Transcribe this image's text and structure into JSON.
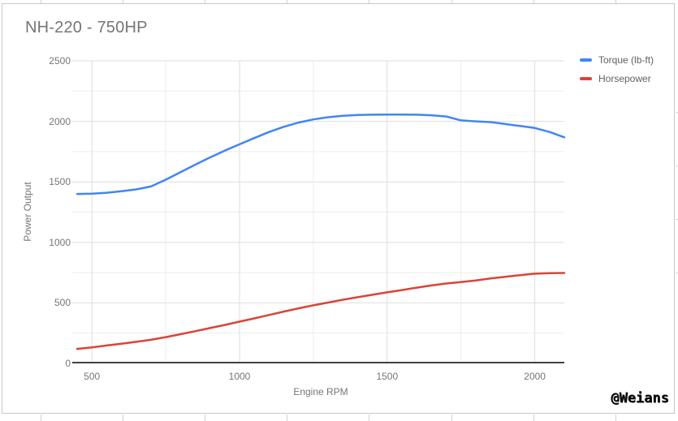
{
  "chart_data": {
    "type": "line",
    "title": "NH-220 - 750HP",
    "xlabel": "Engine RPM",
    "ylabel": "Power Output",
    "x": [
      450,
      500,
      550,
      600,
      650,
      700,
      750,
      800,
      850,
      900,
      950,
      1000,
      1050,
      1100,
      1150,
      1200,
      1250,
      1300,
      1350,
      1400,
      1450,
      1500,
      1550,
      1600,
      1650,
      1700,
      1750,
      1800,
      1850,
      1900,
      1950,
      2000,
      2050,
      2100
    ],
    "series": [
      {
        "name": "Torque (lb-ft)",
        "color": "#4285f4",
        "values": [
          1400,
          1402,
          1410,
          1422,
          1438,
          1462,
          1518,
          1580,
          1642,
          1702,
          1758,
          1810,
          1862,
          1912,
          1955,
          1990,
          2016,
          2034,
          2046,
          2052,
          2055,
          2056,
          2056,
          2055,
          2050,
          2040,
          2008,
          2000,
          1994,
          1978,
          1962,
          1945,
          1912,
          1868
        ]
      },
      {
        "name": "Horsepower",
        "color": "#db4437",
        "values": [
          120,
          133,
          148,
          162,
          178,
          195,
          217,
          241,
          266,
          292,
          318,
          345,
          372,
          400,
          428,
          455,
          480,
          503,
          526,
          547,
          567,
          587,
          606,
          626,
          644,
          660,
          672,
          685,
          702,
          716,
          729,
          741,
          746,
          747
        ]
      }
    ],
    "xlim": [
      450,
      2100
    ],
    "ylim": [
      0,
      2500
    ],
    "x_ticks": [
      500,
      1000,
      1500,
      2000
    ],
    "y_ticks": [
      0,
      500,
      1000,
      1500,
      2000,
      2500
    ],
    "minor_grid_step": 250,
    "grid": true,
    "legend_position": "top-right",
    "colors": {
      "grid_major": "#dedede",
      "grid_minor": "#ededed",
      "axis_line": "#424242",
      "tick_text": "#757575",
      "title_text": "#757575"
    }
  },
  "watermark": {
    "text": "@Weians"
  }
}
